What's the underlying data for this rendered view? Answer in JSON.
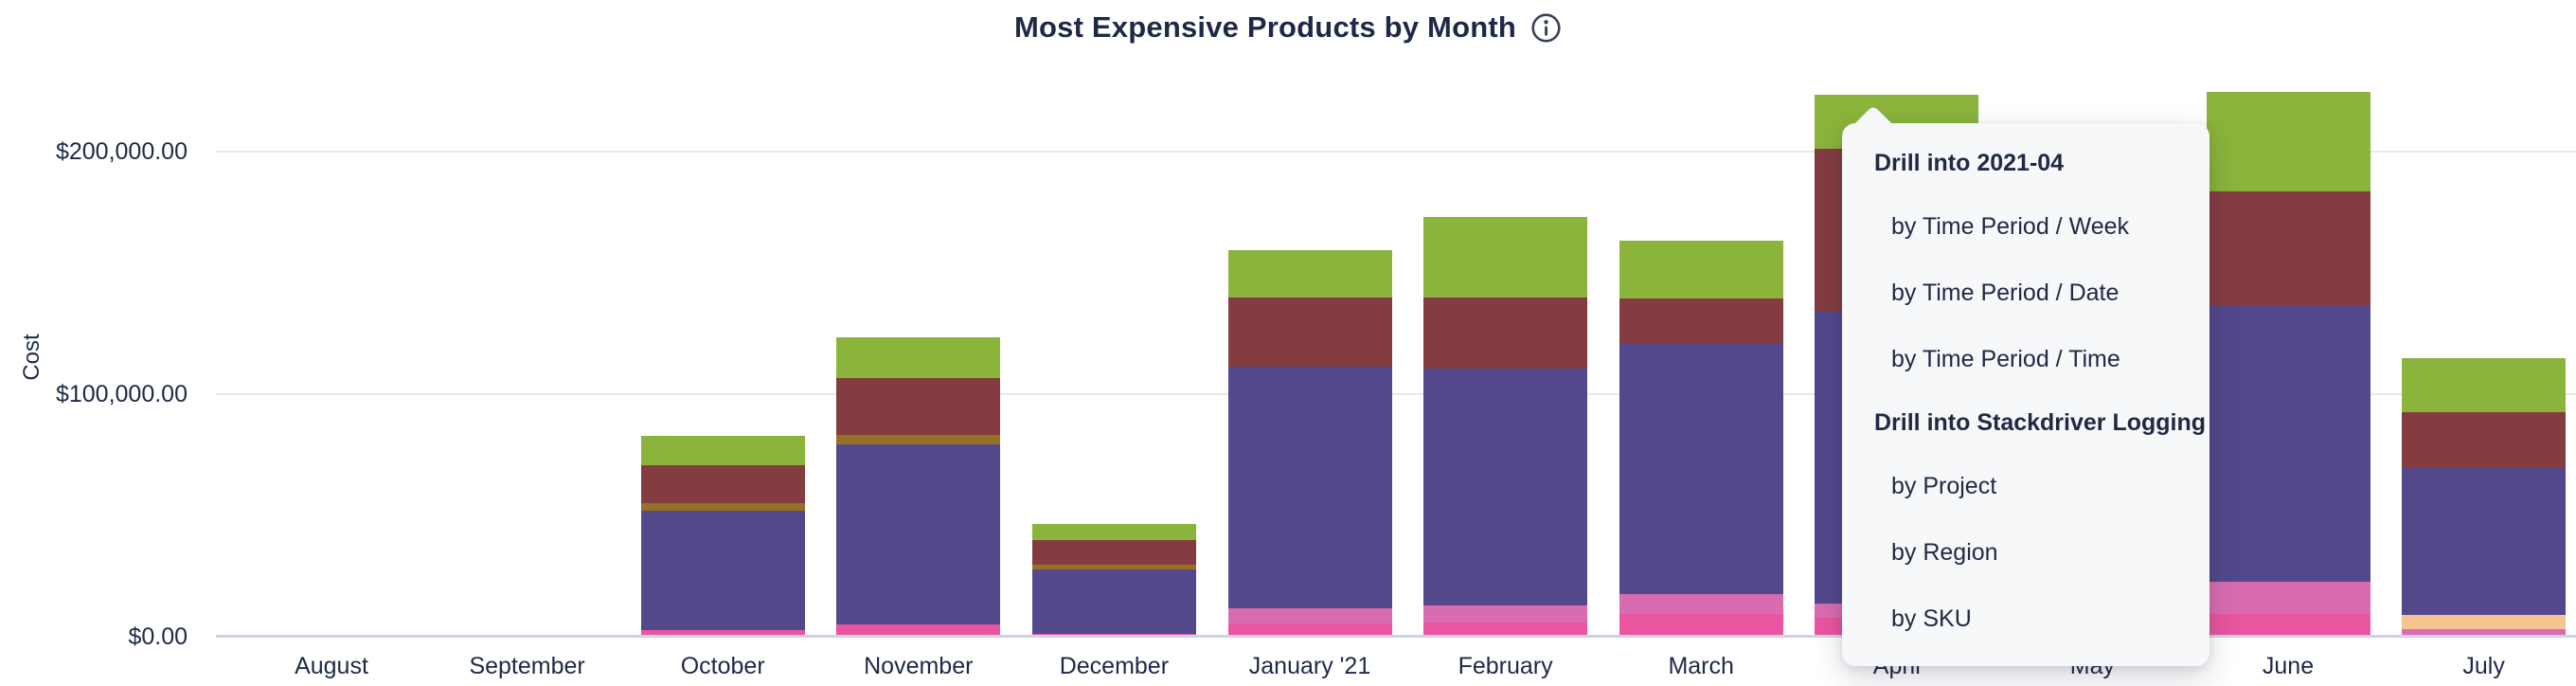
{
  "header": {
    "title": "Most Expensive Products by Month"
  },
  "axis": {
    "y_label": "Cost"
  },
  "drill_menu": {
    "sections": [
      {
        "header": "Drill into 2021-04",
        "items": [
          "by Time Period / Week",
          "by Time Period / Date",
          "by Time Period / Time"
        ]
      },
      {
        "header": "Drill into Stackdriver Logging",
        "items": [
          "by Project",
          "by Region",
          "by SKU"
        ]
      }
    ]
  },
  "colors": {
    "green": "#8ab43b",
    "maroon": "#843c41",
    "olive": "#967125",
    "purple": "#53488b",
    "orchid": "#d96cb1",
    "magenta": "#e9559e",
    "peach": "#f5c491",
    "axis_line": "#ccd3e8",
    "gridline": "#e9e9ec",
    "text": "#1e2947",
    "menu_bg": "#f7f8fa",
    "menu_text": "#202a45"
  },
  "chart_data": {
    "type": "bar",
    "stacked": true,
    "title": "Most Expensive Products by Month",
    "ylabel": "Cost",
    "xlabel": "",
    "legend": "none",
    "grid": "horizontal",
    "ylim": [
      0,
      240000
    ],
    "y_ticks": [
      {
        "label": "$200,000.00",
        "value": 200000
      },
      {
        "label": "$100,000.00",
        "value": 100000
      },
      {
        "label": "$0.00",
        "value": 0
      }
    ],
    "categories": [
      "August",
      "September",
      "October",
      "November",
      "December",
      "January '21",
      "February",
      "March",
      "April",
      "May",
      "June",
      "July"
    ],
    "series_colors": {
      "magenta": "#e9559e",
      "orchid": "#d96cb1",
      "peach": "#f5c491",
      "purple": "#53488b",
      "olive": "#967125",
      "maroon": "#843c41",
      "green": "#8ab43b"
    },
    "bars": [
      {
        "month": "August",
        "total": 0,
        "segments": []
      },
      {
        "month": "September",
        "total": 0,
        "segments": []
      },
      {
        "month": "October",
        "total": 82700,
        "segments": [
          {
            "series": "magenta",
            "value": 2700
          },
          {
            "series": "purple",
            "value": 49200
          },
          {
            "series": "olive",
            "value": 3100
          },
          {
            "series": "maroon",
            "value": 15600
          },
          {
            "series": "green",
            "value": 12100
          }
        ]
      },
      {
        "month": "November",
        "total": 123400,
        "segments": [
          {
            "series": "magenta",
            "value": 5100
          },
          {
            "series": "purple",
            "value": 74200
          },
          {
            "series": "olive",
            "value": 3900
          },
          {
            "series": "maroon",
            "value": 23400
          },
          {
            "series": "green",
            "value": 16800
          }
        ]
      },
      {
        "month": "December",
        "total": 46600,
        "segments": [
          {
            "series": "magenta",
            "value": 1200
          },
          {
            "series": "purple",
            "value": 26600
          },
          {
            "series": "olive",
            "value": 2000
          },
          {
            "series": "maroon",
            "value": 10200
          },
          {
            "series": "green",
            "value": 6600
          }
        ]
      },
      {
        "month": "January '21",
        "total": 159400,
        "segments": [
          {
            "series": "magenta",
            "value": 5500
          },
          {
            "series": "orchid",
            "value": 6300
          },
          {
            "series": "purple",
            "value": 99600
          },
          {
            "series": "maroon",
            "value": 28500
          },
          {
            "series": "green",
            "value": 19500
          }
        ]
      },
      {
        "month": "February",
        "total": 173100,
        "segments": [
          {
            "series": "magenta",
            "value": 5900
          },
          {
            "series": "orchid",
            "value": 7000
          },
          {
            "series": "purple",
            "value": 97700
          },
          {
            "series": "maroon",
            "value": 29300
          },
          {
            "series": "green",
            "value": 33200
          }
        ]
      },
      {
        "month": "March",
        "total": 163300,
        "segments": [
          {
            "series": "magenta",
            "value": 9400
          },
          {
            "series": "orchid",
            "value": 8200
          },
          {
            "series": "purple",
            "value": 103500
          },
          {
            "series": "maroon",
            "value": 18400
          },
          {
            "series": "green",
            "value": 23800
          }
        ]
      },
      {
        "month": "April",
        "total": 223500,
        "segments": [
          {
            "series": "magenta",
            "value": 7800
          },
          {
            "series": "orchid",
            "value": 5900
          },
          {
            "series": "purple",
            "value": 120300
          },
          {
            "series": "maroon",
            "value": 67200
          },
          {
            "series": "green",
            "value": 22300
          }
        ]
      },
      {
        "month": "May",
        "occluded_by_menu": true,
        "segments": []
      },
      {
        "month": "June",
        "total": 224700,
        "segments": [
          {
            "series": "magenta",
            "value": 9400
          },
          {
            "series": "orchid",
            "value": 13300
          },
          {
            "series": "purple",
            "value": 113700
          },
          {
            "series": "maroon",
            "value": 47300
          },
          {
            "series": "green",
            "value": 41000
          }
        ]
      },
      {
        "month": "July",
        "total": 114800,
        "segments": [
          {
            "series": "orchid",
            "value": 3100
          },
          {
            "series": "peach",
            "value": 5900
          },
          {
            "series": "purple",
            "value": 60500
          },
          {
            "series": "maroon",
            "value": 23000
          },
          {
            "series": "green",
            "value": 22300
          }
        ]
      }
    ]
  }
}
